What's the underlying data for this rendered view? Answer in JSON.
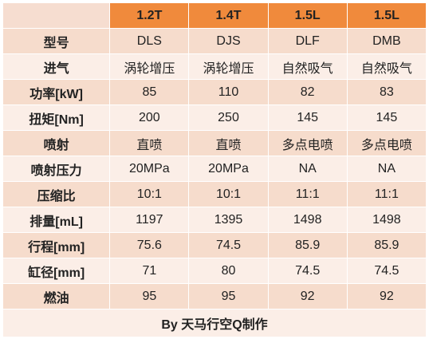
{
  "header": {
    "columns": [
      "1.2T",
      "1.4T",
      "1.5L",
      "1.5L"
    ]
  },
  "rows": [
    {
      "label": "型号",
      "values": [
        "DLS",
        "DJS",
        "DLF",
        "DMB"
      ]
    },
    {
      "label": "进气",
      "values": [
        "涡轮增压",
        "涡轮增压",
        "自然吸气",
        "自然吸气"
      ]
    },
    {
      "label": "功率[kW]",
      "values": [
        "85",
        "110",
        "82",
        "83"
      ]
    },
    {
      "label": "扭矩[Nm]",
      "values": [
        "200",
        "250",
        "145",
        "145"
      ]
    },
    {
      "label": "喷射",
      "values": [
        "直喷",
        "直喷",
        "多点电喷",
        "多点电喷"
      ]
    },
    {
      "label": "喷射压力",
      "values": [
        "20MPa",
        "20MPa",
        "NA",
        "NA"
      ]
    },
    {
      "label": "压缩比",
      "values": [
        "10:1",
        "10:1",
        "11:1",
        "11:1"
      ]
    },
    {
      "label": "排量[mL]",
      "values": [
        "1197",
        "1395",
        "1498",
        "1498"
      ]
    },
    {
      "label": "行程[mm]",
      "values": [
        "75.6",
        "74.5",
        "85.9",
        "85.9"
      ]
    },
    {
      "label": "缸径[mm]",
      "values": [
        "71",
        "80",
        "74.5",
        "74.5"
      ]
    },
    {
      "label": "燃油",
      "values": [
        "95",
        "95",
        "92",
        "92"
      ]
    }
  ],
  "footer": {
    "credit": "By 天马行空Q制作"
  }
}
